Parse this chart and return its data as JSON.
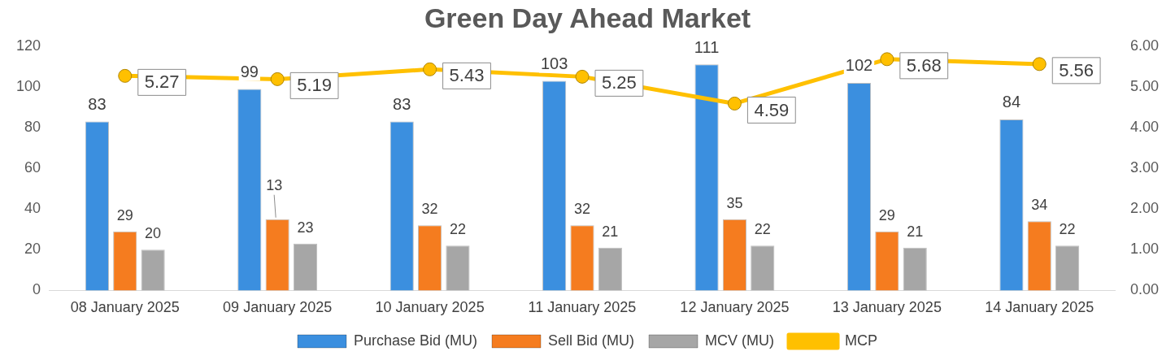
{
  "chart_data": {
    "type": "bar",
    "title": "Green Day Ahead Market",
    "categories": [
      "08 January 2025",
      "09 January 2025",
      "10 January 2025",
      "11 January 2025",
      "12 January 2025",
      "13 January 2025",
      "14 January 2025"
    ],
    "series": [
      {
        "name": "Purchase Bid (MU)",
        "color": "#3b8fdf",
        "values": [
          83,
          99,
          83,
          103,
          111,
          102,
          84
        ],
        "value_labels": [
          "83",
          "99",
          "83",
          "103",
          "111",
          "102",
          "84"
        ]
      },
      {
        "name": "Sell Bid (MU)",
        "color": "#f57c1f",
        "values": [
          29,
          35,
          32,
          32,
          35,
          29,
          34
        ],
        "value_labels": [
          "29",
          null,
          "32",
          "32",
          "35",
          "29",
          "34"
        ]
      },
      {
        "name": "MCV (MU)",
        "color": "#a6a6a6",
        "values": [
          20,
          23,
          22,
          21,
          22,
          21,
          22
        ],
        "value_labels": [
          "20",
          "23",
          "22",
          "21",
          "22",
          "21",
          "22"
        ]
      },
      {
        "name": "MCP",
        "type": "line",
        "axis": "y2",
        "color": "#ffc000",
        "values": [
          5.27,
          5.19,
          5.43,
          5.25,
          4.59,
          5.68,
          5.56
        ],
        "value_labels": [
          "5.27",
          "5.19",
          "5.43",
          "5.25",
          "4.59",
          "5.68",
          "5.56"
        ],
        "marker": "circle"
      }
    ],
    "ylim": [
      0,
      120
    ],
    "yticks": [
      0,
      20,
      40,
      60,
      80,
      100,
      120
    ],
    "y2lim": [
      0,
      6
    ],
    "y2ticks": [
      {
        "value": 0,
        "label": "0.00"
      },
      {
        "value": 1,
        "label": "1.00"
      },
      {
        "value": 2,
        "label": "2.00"
      },
      {
        "value": 3,
        "label": "3.00"
      },
      {
        "value": 4,
        "label": "4.00"
      },
      {
        "value": 5,
        "label": "5.00"
      },
      {
        "value": 6,
        "label": "6.00"
      }
    ],
    "annotations": [
      {
        "text": "13",
        "x": "09 January 2025",
        "y": 35
      }
    ],
    "grid": false,
    "legend": "bottom"
  }
}
